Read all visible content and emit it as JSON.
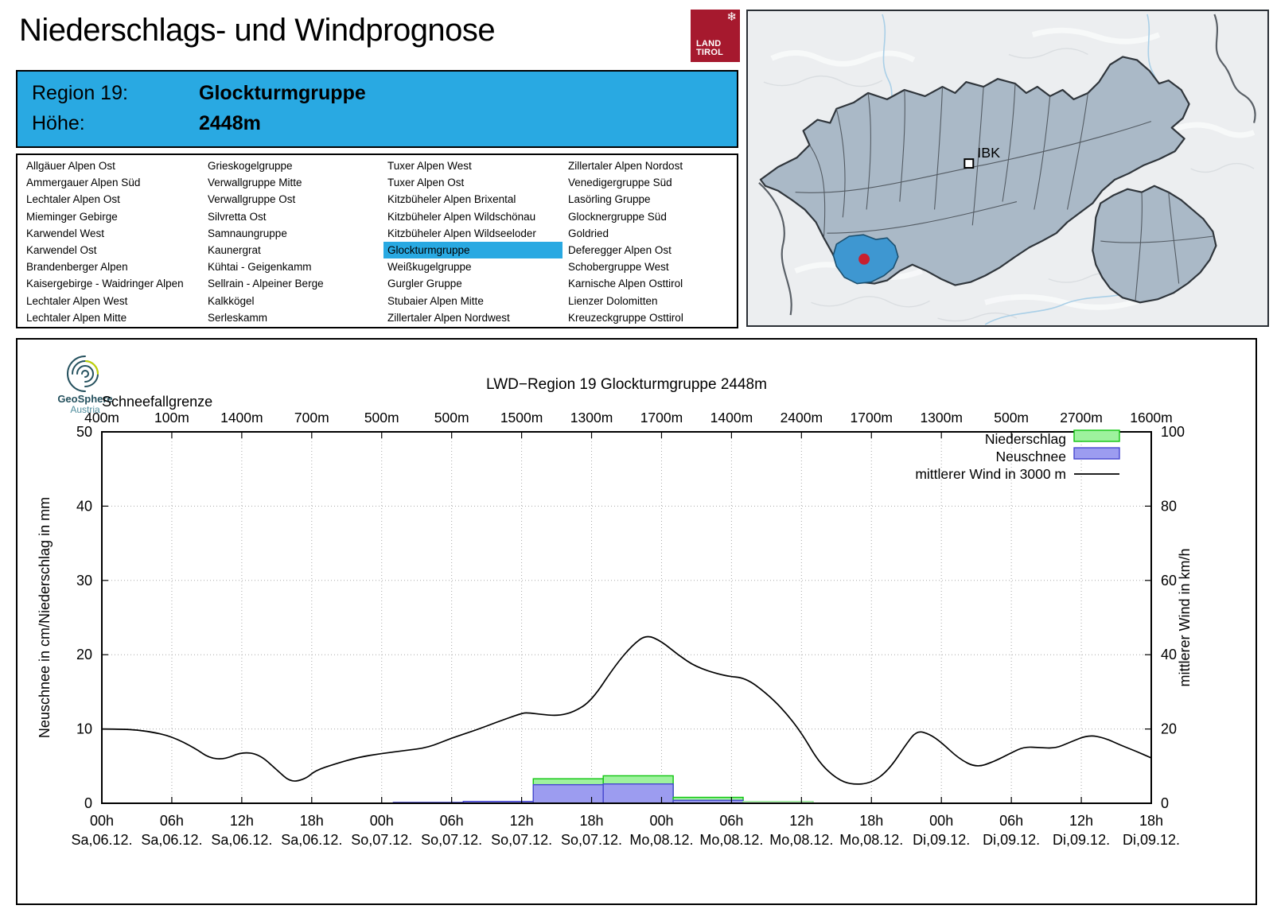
{
  "header": {
    "title": "Niederschlags- und Windprognose",
    "logo": {
      "icon": "❄",
      "line1": "LAND",
      "line2": "TIROL"
    }
  },
  "region_info": {
    "label1": "Region 19:",
    "value1": "Glockturmgruppe",
    "label2": "Höhe:",
    "value2": "2448m"
  },
  "region_list": {
    "selected": "Glockturmgruppe",
    "columns": [
      [
        "Allgäuer Alpen Ost",
        "Ammergauer Alpen Süd",
        "Lechtaler Alpen Ost",
        "Mieminger Gebirge",
        "Karwendel West",
        "Karwendel Ost",
        "Brandenberger Alpen",
        "Kaisergebirge - Waidringer Alpen",
        "Lechtaler Alpen West",
        "Lechtaler Alpen Mitte"
      ],
      [
        "Grieskogelgruppe",
        "Verwallgruppe Mitte",
        "Verwallgruppe Ost",
        "Silvretta Ost",
        "Samnaungruppe",
        "Kaunergrat",
        "Kühtai - Geigenkamm",
        "Sellrain - Alpeiner Berge",
        "Kalkkögel",
        "Serleskamm"
      ],
      [
        "Tuxer Alpen West",
        "Tuxer Alpen Ost",
        "Kitzbüheler Alpen Brixental",
        "Kitzbüheler Alpen Wildschönau",
        "Kitzbüheler Alpen Wildseeloder",
        "Glockturmgruppe",
        "Weißkugelgruppe",
        "Gurgler Gruppe",
        "Stubaier Alpen Mitte",
        "Zillertaler Alpen Nordwest"
      ],
      [
        "Zillertaler Alpen Nordost",
        "Venedigergruppe Süd",
        "Lasörling Gruppe",
        "Glocknergruppe Süd",
        "Goldried",
        "Deferegger Alpen Ost",
        "Schobergruppe West",
        "Karnische Alpen Osttirol",
        "Lienzer Dolomitten",
        "Kreuzeckgruppe Osttirol"
      ]
    ]
  },
  "map": {
    "ibk_label": "IBK"
  },
  "brand": {
    "name": "GeoSphere",
    "sub": "Austria"
  },
  "colors": {
    "accent_blue": "#29a9e2",
    "tirol_red": "#a6192e",
    "precip_green": "#9ef29e",
    "precip_green_border": "#0fc50f",
    "precip_pale": "#dcf9dc",
    "precip_pale_border": "#9ae89a",
    "snow_blue": "#9c9cf0",
    "snow_blue_border": "#4646cf",
    "wind_line": "#000000",
    "map_region": "#aab9c7",
    "map_highlight": "#3e97d1",
    "marker_red": "#c8202f"
  },
  "chart_data": {
    "type": "bar+line",
    "title": "LWD−Region 19 Glockturmgruppe 2448m",
    "snowline_label": "Schneefallgrenze",
    "snowline_m": [
      400,
      100,
      1400,
      700,
      500,
      500,
      1500,
      1300,
      1700,
      1400,
      2400,
      1700,
      1300,
      500,
      2700,
      1600
    ],
    "x_hours": [
      "00h",
      "06h",
      "12h",
      "18h",
      "00h",
      "06h",
      "12h",
      "18h",
      "00h",
      "06h",
      "12h",
      "18h",
      "00h",
      "06h",
      "12h",
      "18h"
    ],
    "x_dates": [
      "Sa,06.12.",
      "Sa,06.12.",
      "Sa,06.12.",
      "Sa,06.12.",
      "So,07.12.",
      "So,07.12.",
      "So,07.12.",
      "So,07.12.",
      "Mo,08.12.",
      "Mo,08.12.",
      "Mo,08.12.",
      "Mo,08.12.",
      "Di,09.12.",
      "Di,09.12.",
      "Di,09.12.",
      "Di,09.12."
    ],
    "ylabel_left": "Neuschnee in cm/Niederschlag in mm",
    "ylabel_right": "mittlerer Wind in km/h",
    "ylim_left": [
      0,
      50
    ],
    "ylim_right": [
      0,
      100
    ],
    "yticks_left": [
      0,
      10,
      20,
      30,
      40,
      50
    ],
    "yticks_right": [
      0,
      20,
      40,
      60,
      80,
      100
    ],
    "grid": true,
    "legend_position": "top-right",
    "legend": [
      {
        "label": "Niederschlag",
        "color": "#9ef29e",
        "border": "#0fc50f"
      },
      {
        "label": "Neuschnee",
        "color": "#9c9cf0",
        "border": "#4646cf"
      },
      {
        "label": "mittlerer Wind in 3000 m",
        "type": "line",
        "color": "#000000"
      }
    ],
    "bars": {
      "offset_hours": 1,
      "period_hours": 6,
      "niederschlag_mm": [
        0,
        0,
        0,
        0,
        0,
        0,
        3.3,
        3.7,
        0.8,
        0.25,
        0,
        0,
        0,
        0,
        0,
        0
      ],
      "neuschnee_cm": [
        0,
        0,
        0,
        0,
        0.12,
        0.25,
        2.5,
        2.6,
        0.4,
        0,
        0,
        0,
        0,
        0,
        0,
        0
      ],
      "pale_indices": [
        9
      ]
    },
    "wind_line": {
      "name": "mittlerer Wind in 3000 m",
      "axis": "right",
      "points_h_kmh": [
        [
          0,
          20
        ],
        [
          2,
          20
        ],
        [
          4,
          19.4
        ],
        [
          6,
          18
        ],
        [
          8,
          14.8
        ],
        [
          9.2,
          12.2
        ],
        [
          10.5,
          11.8
        ],
        [
          12,
          13.8
        ],
        [
          13.5,
          13.2
        ],
        [
          15,
          9
        ],
        [
          16.2,
          5.6
        ],
        [
          17.5,
          6.6
        ],
        [
          18.3,
          8.8
        ],
        [
          20,
          10.6
        ],
        [
          22,
          12.4
        ],
        [
          24,
          13.4
        ],
        [
          26,
          14.2
        ],
        [
          28,
          15
        ],
        [
          30,
          17.6
        ],
        [
          32,
          19.6
        ],
        [
          34,
          22
        ],
        [
          36,
          24.2
        ],
        [
          36.5,
          24.4
        ],
        [
          38,
          23.8
        ],
        [
          39.2,
          23.6
        ],
        [
          40.5,
          24.6
        ],
        [
          42,
          27.6
        ],
        [
          44,
          37
        ],
        [
          45.5,
          42.6
        ],
        [
          46.7,
          45.4
        ],
        [
          48,
          43.6
        ],
        [
          49.4,
          40
        ],
        [
          51,
          36.6
        ],
        [
          53.5,
          34.2
        ],
        [
          55.2,
          33.8
        ],
        [
          57,
          29.6
        ],
        [
          58.5,
          25
        ],
        [
          60,
          19
        ],
        [
          61.5,
          11
        ],
        [
          63,
          6.6
        ],
        [
          64.3,
          5
        ],
        [
          66,
          5.4
        ],
        [
          67.5,
          9
        ],
        [
          69,
          16
        ],
        [
          69.9,
          19.6
        ],
        [
          71,
          18.6
        ],
        [
          72,
          16.4
        ],
        [
          73.5,
          12
        ],
        [
          75,
          9.6
        ],
        [
          76.5,
          11.2
        ],
        [
          78,
          13.6
        ],
        [
          79.1,
          15.2
        ],
        [
          80.4,
          15
        ],
        [
          81.8,
          14.8
        ],
        [
          83,
          16.4
        ],
        [
          84.6,
          18.4
        ],
        [
          86,
          17.6
        ],
        [
          87.4,
          15.6
        ],
        [
          88.7,
          14
        ],
        [
          90,
          12.2
        ]
      ]
    }
  }
}
